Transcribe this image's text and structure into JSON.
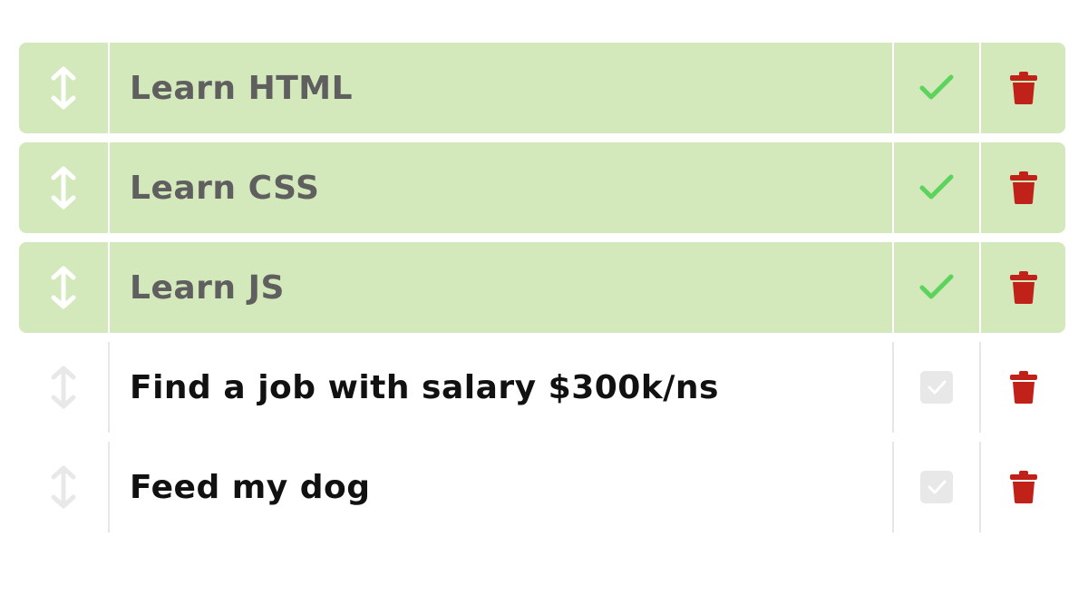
{
  "colors": {
    "done_background": "#d3e8bb",
    "done_text": "#5f5f5f",
    "pending_text": "#111111",
    "check_done": "#5cd35c",
    "check_pending": "#e8e8e8",
    "trash": "#c0221a",
    "drag_done": "#ffffff",
    "drag_pending": "#e8e8e8"
  },
  "icons": {
    "drag": "vertical-arrows-icon",
    "done": "checkmark-icon",
    "pending": "checkbox-icon",
    "delete": "trash-icon"
  },
  "todos": [
    {
      "text": "Learn HTML",
      "done": true
    },
    {
      "text": "Learn CSS",
      "done": true
    },
    {
      "text": "Learn JS",
      "done": true
    },
    {
      "text": "Find a job with salary $300k/ns",
      "done": false
    },
    {
      "text": "Feed my dog",
      "done": false
    }
  ]
}
